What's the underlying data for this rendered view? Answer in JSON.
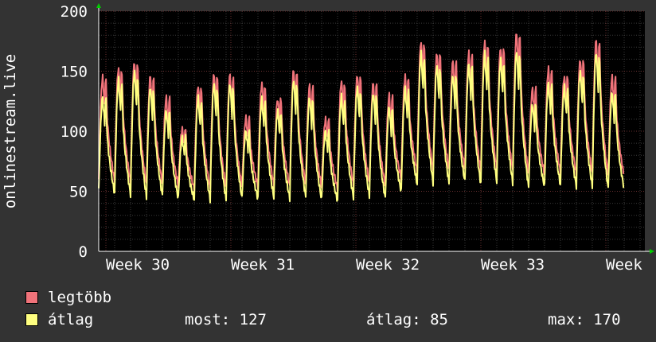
{
  "chart_data": {
    "type": "line",
    "ylabel": "onlinestream.live",
    "ylim": [
      0,
      200
    ],
    "yticks": [
      0,
      50,
      100,
      150,
      200
    ],
    "xticks": [
      "Week 30",
      "Week 31",
      "Week 32",
      "Week 33",
      "Week"
    ],
    "grid": true,
    "series": [
      {
        "name": "legtöbb",
        "color": "#f0737a",
        "peaks": [
          145,
          153,
          158,
          146,
          128,
          102,
          138,
          148,
          147,
          111,
          140,
          127,
          151,
          138,
          110,
          142,
          147,
          140,
          130,
          146,
          175,
          165,
          158,
          165,
          175,
          170,
          182,
          135,
          152,
          146,
          160,
          176,
          145
        ],
        "troughs": [
          60,
          58,
          57,
          55,
          56,
          54,
          52,
          52,
          52,
          53,
          54,
          55,
          54,
          55,
          53,
          52,
          55,
          56,
          54,
          60,
          66,
          67,
          67,
          68,
          66,
          68,
          67,
          63,
          64,
          65,
          64,
          64,
          62
        ]
      },
      {
        "name": "átlag",
        "color": "#ffff80",
        "peaks": [
          128,
          143,
          150,
          137,
          117,
          95,
          128,
          140,
          140,
          100,
          127,
          117,
          143,
          128,
          100,
          129,
          137,
          132,
          120,
          136,
          165,
          155,
          147,
          156,
          165,
          160,
          167,
          122,
          140,
          137,
          150,
          166,
          132
        ],
        "troughs": [
          50,
          48,
          47,
          45,
          46,
          44,
          43,
          43,
          43,
          44,
          44,
          45,
          44,
          45,
          43,
          42,
          45,
          46,
          44,
          50,
          56,
          57,
          57,
          58,
          56,
          58,
          57,
          53,
          54,
          55,
          54,
          54,
          52
        ]
      }
    ]
  },
  "legend": {
    "max_label": "legtöbb",
    "avg_label": "átlag",
    "stats": {
      "now": "most: 127",
      "avg": "átlag: 85",
      "max": "max: 170"
    }
  }
}
